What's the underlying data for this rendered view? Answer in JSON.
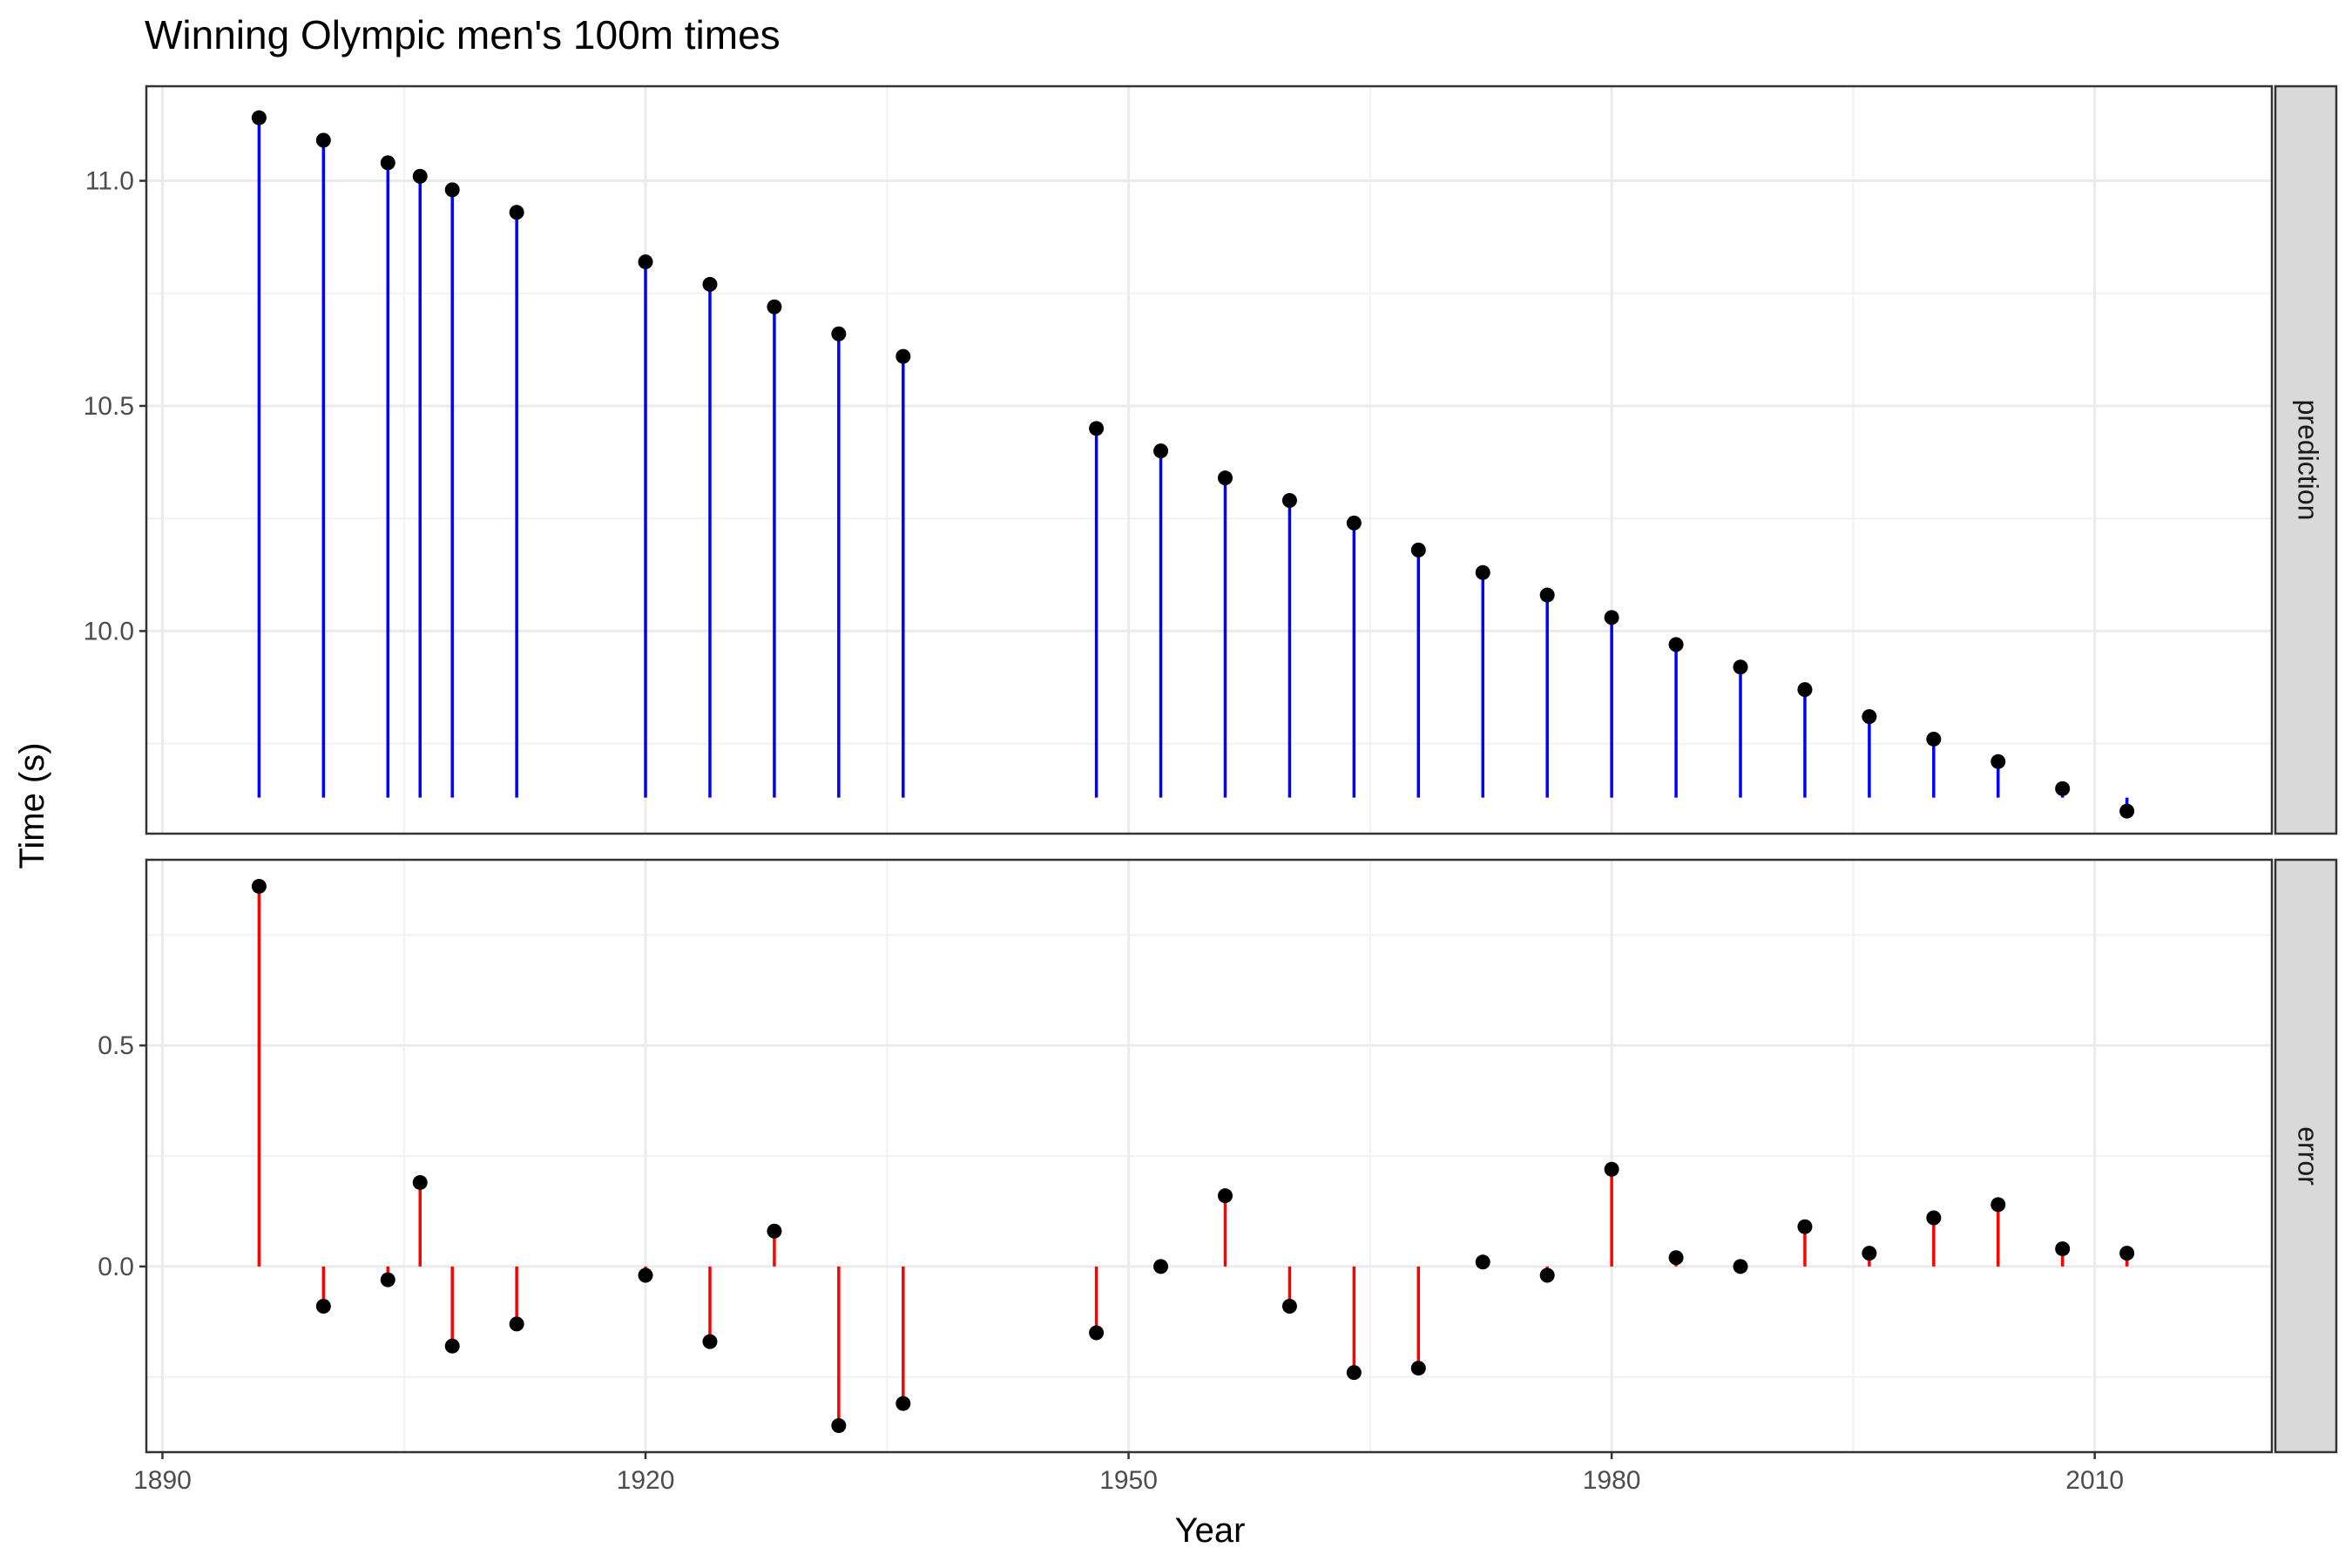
{
  "chart_data": {
    "type": "lollipop",
    "title": "Winning Olympic men's 100m times",
    "xlabel": "Year",
    "ylabel": "Time (s)",
    "x_ticks": [
      1890,
      1920,
      1950,
      1980,
      2010
    ],
    "xlim": [
      1889,
      2021
    ],
    "grid": true,
    "years": [
      1896,
      1900,
      1904,
      1906,
      1908,
      1912,
      1920,
      1924,
      1928,
      1932,
      1936,
      1948,
      1952,
      1956,
      1960,
      1964,
      1968,
      1972,
      1976,
      1980,
      1984,
      1988,
      1992,
      1996,
      2000,
      2004,
      2008,
      2012
    ],
    "panels": [
      {
        "strip_label": "prediction",
        "color": "#0000ff",
        "baseline": 9.63,
        "ylim": [
          9.55,
          11.21
        ],
        "y_ticks": [
          10.0,
          10.5,
          11.0
        ],
        "y_tick_labels": [
          "10.0",
          "10.5",
          "11.0"
        ],
        "values": [
          11.14,
          11.09,
          11.04,
          11.01,
          10.98,
          10.93,
          10.82,
          10.77,
          10.72,
          10.66,
          10.61,
          10.45,
          10.4,
          10.34,
          10.29,
          10.24,
          10.18,
          10.13,
          10.08,
          10.03,
          9.97,
          9.92,
          9.87,
          9.81,
          9.76,
          9.71,
          9.65,
          9.6
        ]
      },
      {
        "strip_label": "error",
        "color": "#ff0000",
        "baseline": 0.0,
        "ylim": [
          -0.42,
          0.92
        ],
        "y_ticks": [
          0.0,
          0.5
        ],
        "y_tick_labels": [
          "0.0",
          "0.5"
        ],
        "values": [
          0.86,
          -0.09,
          -0.03,
          0.19,
          -0.18,
          -0.13,
          -0.02,
          -0.17,
          0.08,
          -0.36,
          -0.31,
          -0.15,
          0.0,
          0.16,
          -0.09,
          -0.24,
          -0.23,
          0.01,
          -0.02,
          0.22,
          0.02,
          0.0,
          0.09,
          0.03,
          0.11,
          0.14,
          0.04,
          0.03
        ]
      }
    ]
  }
}
